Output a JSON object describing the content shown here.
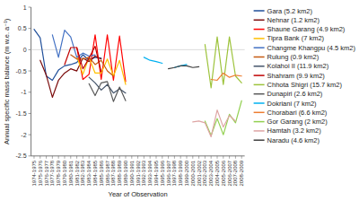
{
  "chart_data": {
    "type": "line",
    "xlabel": "Year of Observation",
    "ylabel": "Annual specific mass balance (m w.e. a⁻¹)",
    "categories": [
      "1974-1975",
      "1975-1976",
      "1976-1977",
      "1977-1978",
      "1978-1979",
      "1979-1980",
      "1980-1981",
      "1981-1982",
      "1982-1983",
      "1983-1984",
      "1984-1985",
      "1985-1986",
      "1986-1987",
      "1987-1988",
      "1988-1989",
      "1989-1990",
      "1990-1991",
      "1991-1992",
      "1992-1993",
      "1993-1994",
      "1994-1995",
      "1995-1996",
      "1996-1997",
      "1997-1998",
      "1998-1999",
      "1999-2000",
      "2000-2001",
      "2001-2002",
      "2002-2003",
      "2003-2004",
      "2004-2005",
      "2005-2006",
      "2006-2007",
      "2007-2008",
      "2008-2009"
    ],
    "series": [
      {
        "name": "Gara (5.2 km2)",
        "color": "#1f4e99",
        "values": [
          0.48,
          0.28,
          -0.62,
          -0.72,
          -0.48,
          -0.38,
          -0.35,
          -0.3,
          -0.12,
          -0.25,
          -0.18,
          -0.2,
          null,
          null,
          null,
          null,
          null,
          null,
          null,
          null,
          null,
          null,
          null,
          null,
          null,
          null,
          null,
          null,
          null,
          null,
          null,
          null,
          null,
          null,
          null
        ]
      },
      {
        "name": "Nehnar (1.2 km2)",
        "color": "#7b0c0c",
        "values": [
          null,
          -0.25,
          -0.6,
          -1.12,
          -0.72,
          -0.55,
          -0.45,
          -0.5,
          -0.2,
          -0.28,
          -0.15,
          -0.22,
          null,
          null,
          null,
          null,
          null,
          null,
          null,
          null,
          null,
          null,
          null,
          null,
          null,
          null,
          null,
          null,
          null,
          null,
          null,
          null,
          null,
          null,
          null
        ]
      },
      {
        "name": "Shaune Garang (4.9 km2)",
        "color": "#ff0000",
        "values": [
          null,
          null,
          null,
          null,
          null,
          null,
          null,
          0.05,
          -0.7,
          -0.58,
          0.35,
          -0.7,
          0.35,
          -0.72,
          0.32,
          -0.75,
          null,
          null,
          null,
          null,
          null,
          null,
          null,
          null,
          null,
          null,
          null,
          null,
          null,
          null,
          null,
          null,
          null,
          null,
          null
        ]
      },
      {
        "name": "Tipra Bank (7 km2)",
        "color": "#ffc000",
        "values": [
          null,
          null,
          null,
          null,
          null,
          null,
          null,
          -0.15,
          -0.58,
          -0.18,
          -0.55,
          -0.55,
          -0.22,
          -0.62,
          -0.25,
          -0.82,
          null,
          null,
          null,
          null,
          null,
          null,
          null,
          null,
          null,
          null,
          null,
          null,
          null,
          null,
          null,
          null,
          null,
          null,
          null
        ]
      },
      {
        "name": "Changme Khangpu (4.5 km2)",
        "color": "#4472c4",
        "values": [
          null,
          null,
          null,
          0.35,
          -0.18,
          0.46,
          0.3,
          -0.18,
          -0.08,
          -0.15,
          -0.12,
          null,
          null,
          null,
          null,
          null,
          null,
          null,
          null,
          null,
          null,
          null,
          null,
          null,
          null,
          null,
          null,
          null,
          null,
          null,
          null,
          null,
          null,
          null,
          null
        ]
      },
      {
        "name": "Rulung (0.9 km2)",
        "color": "#c55a11",
        "values": [
          null,
          null,
          null,
          null,
          null,
          null,
          -0.12,
          -0.22,
          -0.22,
          -0.18,
          -0.35,
          -0.25,
          -0.5,
          -0.62,
          null,
          null,
          null,
          null,
          null,
          null,
          null,
          null,
          null,
          null,
          null,
          null,
          null,
          null,
          null,
          null,
          null,
          null,
          null,
          null,
          null
        ]
      },
      {
        "name": "Kolahoi II (11.9 km2)",
        "color": "#44546a",
        "values": [
          null,
          null,
          null,
          null,
          null,
          null,
          null,
          null,
          null,
          -0.65,
          -0.78,
          -0.95,
          -0.82,
          -1.02,
          -0.92,
          -1.02,
          null,
          null,
          null,
          null,
          null,
          null,
          null,
          null,
          null,
          null,
          null,
          null,
          null,
          null,
          null,
          null,
          null,
          null,
          null
        ]
      },
      {
        "name": "Shahram (9.9 km2)",
        "color": "#c00000",
        "values": [
          null,
          null,
          null,
          null,
          null,
          -0.35,
          0.05,
          0.05,
          -0.45,
          -0.2,
          0.08,
          -0.52,
          null,
          null,
          null,
          null,
          null,
          null,
          null,
          null,
          null,
          null,
          null,
          null,
          null,
          null,
          null,
          null,
          null,
          null,
          null,
          null,
          null,
          null,
          null
        ]
      },
      {
        "name": "Chhota Shigri (15.7 km2)",
        "color": "#9dc33b",
        "values": [
          null,
          null,
          null,
          null,
          null,
          null,
          null,
          null,
          null,
          null,
          null,
          null,
          null,
          null,
          null,
          null,
          null,
          null,
          null,
          null,
          null,
          null,
          null,
          null,
          null,
          null,
          null,
          null,
          0.12,
          -0.9,
          0.3,
          -0.82,
          0.3,
          -0.62,
          -0.78
        ]
      },
      {
        "name": "Dunapiri (2.6 km2)",
        "color": "#595959",
        "values": [
          null,
          null,
          null,
          null,
          null,
          null,
          null,
          null,
          null,
          -0.8,
          -1.08,
          -0.78,
          -0.75,
          -1.22,
          -0.88,
          -1.2,
          null,
          null,
          null,
          null,
          null,
          null,
          null,
          null,
          null,
          null,
          null,
          null,
          null,
          null,
          null,
          null,
          null,
          null,
          null
        ]
      },
      {
        "name": "Dokriani (7 km2)",
        "color": "#00b0f0",
        "values": [
          null,
          null,
          null,
          null,
          null,
          null,
          null,
          null,
          null,
          null,
          null,
          null,
          null,
          null,
          null,
          null,
          null,
          null,
          -0.18,
          -0.25,
          -0.28,
          -0.32,
          null,
          -0.42,
          -0.38,
          -0.35,
          null,
          null,
          null,
          null,
          null,
          null,
          null,
          null,
          null
        ]
      },
      {
        "name": "Chorabari (6.6 km2)",
        "color": "#ed7d31",
        "values": [
          null,
          null,
          null,
          null,
          null,
          null,
          null,
          null,
          null,
          null,
          null,
          null,
          null,
          null,
          null,
          null,
          null,
          null,
          null,
          null,
          null,
          null,
          null,
          null,
          null,
          null,
          null,
          null,
          null,
          -0.7,
          -0.72,
          -0.55,
          -0.65,
          -0.6,
          -0.62
        ]
      },
      {
        "name": "Gor Garang (2 km2)",
        "color": "#92d050",
        "values": [
          null,
          null,
          null,
          null,
          null,
          null,
          null,
          null,
          null,
          null,
          null,
          null,
          null,
          null,
          null,
          null,
          null,
          null,
          null,
          null,
          null,
          null,
          null,
          null,
          null,
          null,
          null,
          null,
          -1.68,
          -2.02,
          -1.62,
          -2.0,
          -1.52,
          -1.72,
          -1.2
        ]
      },
      {
        "name": "Hamtah (3.2 km2)",
        "color": "#dea5a4",
        "values": [
          null,
          null,
          null,
          null,
          null,
          null,
          null,
          null,
          null,
          null,
          null,
          null,
          null,
          null,
          null,
          null,
          null,
          null,
          null,
          null,
          null,
          null,
          null,
          null,
          null,
          null,
          -1.7,
          -1.68,
          -1.72,
          -2.05,
          -1.42,
          -1.82,
          -1.55,
          -1.68,
          null
        ]
      },
      {
        "name": "Naradu (4.6 km2)",
        "color": "#404040",
        "values": [
          null,
          null,
          null,
          null,
          null,
          null,
          null,
          null,
          null,
          null,
          null,
          null,
          null,
          null,
          null,
          null,
          null,
          null,
          null,
          null,
          null,
          null,
          -0.45,
          -0.42,
          -0.38,
          -0.38,
          -0.42,
          -0.4,
          null,
          null,
          null,
          null,
          null,
          null,
          null
        ]
      }
    ],
    "ylim": [
      -2.5,
      1.0
    ],
    "yticks": [
      -2.5,
      -2,
      -1.5,
      -1,
      -0.5,
      0,
      0.5,
      1
    ],
    "grid": false,
    "legend": "right"
  }
}
